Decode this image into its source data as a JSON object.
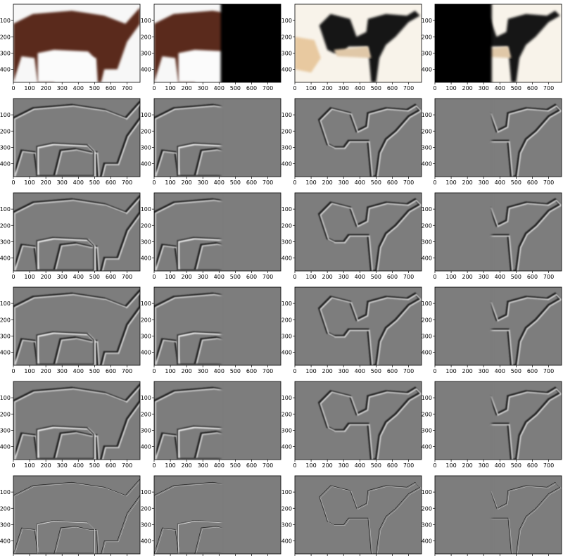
{
  "figure": {
    "rows": 6,
    "cols": 4,
    "x_ticks": [
      "0",
      "100",
      "200",
      "300",
      "400",
      "500",
      "600",
      "700"
    ],
    "y_ticks": [
      "100",
      "200",
      "300",
      "400"
    ],
    "x_range": [
      0,
      780
    ],
    "y_range": [
      0,
      480
    ],
    "colors": {
      "brown_horse": "#5a2a1c",
      "black_cow": "#151515",
      "mid_gray": "#7d7d7d",
      "edge_dark": "#222222",
      "edge_light": "#e6e6e6",
      "frame": "#000000"
    },
    "panels": [
      {
        "row": 0,
        "col": 0,
        "content": "horse-color",
        "mask": "full"
      },
      {
        "row": 0,
        "col": 1,
        "content": "horse-color",
        "mask": "left-half"
      },
      {
        "row": 0,
        "col": 2,
        "content": "cow-color",
        "mask": "full"
      },
      {
        "row": 0,
        "col": 3,
        "content": "cow-color",
        "mask": "right-half"
      },
      {
        "row": 1,
        "col": 0,
        "content": "horse-edges",
        "mask": "full"
      },
      {
        "row": 1,
        "col": 1,
        "content": "horse-edges",
        "mask": "left-half"
      },
      {
        "row": 1,
        "col": 2,
        "content": "cow-edges",
        "mask": "full"
      },
      {
        "row": 1,
        "col": 3,
        "content": "cow-edges",
        "mask": "right-half"
      },
      {
        "row": 2,
        "col": 0,
        "content": "horse-edges",
        "mask": "full"
      },
      {
        "row": 2,
        "col": 1,
        "content": "horse-edges",
        "mask": "left-half"
      },
      {
        "row": 2,
        "col": 2,
        "content": "cow-edges",
        "mask": "full"
      },
      {
        "row": 2,
        "col": 3,
        "content": "cow-edges",
        "mask": "right-half"
      },
      {
        "row": 3,
        "col": 0,
        "content": "horse-edges",
        "mask": "full"
      },
      {
        "row": 3,
        "col": 1,
        "content": "horse-edges",
        "mask": "left-half"
      },
      {
        "row": 3,
        "col": 2,
        "content": "cow-edges",
        "mask": "full"
      },
      {
        "row": 3,
        "col": 3,
        "content": "cow-edges",
        "mask": "right-half"
      },
      {
        "row": 4,
        "col": 0,
        "content": "horse-edges",
        "mask": "full"
      },
      {
        "row": 4,
        "col": 1,
        "content": "horse-edges",
        "mask": "left-half"
      },
      {
        "row": 4,
        "col": 2,
        "content": "cow-edges",
        "mask": "full"
      },
      {
        "row": 4,
        "col": 3,
        "content": "cow-edges",
        "mask": "right-half"
      },
      {
        "row": 5,
        "col": 0,
        "content": "horse-fine-edges",
        "mask": "full"
      },
      {
        "row": 5,
        "col": 1,
        "content": "horse-fine-edges",
        "mask": "left-half"
      },
      {
        "row": 5,
        "col": 2,
        "content": "cow-fine-edges",
        "mask": "full"
      },
      {
        "row": 5,
        "col": 3,
        "content": "cow-fine-edges",
        "mask": "right-half"
      }
    ]
  }
}
